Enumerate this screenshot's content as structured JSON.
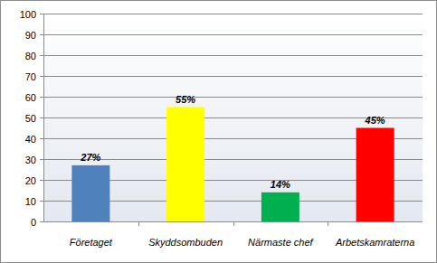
{
  "chart_data": {
    "type": "bar",
    "categories": [
      "Företaget",
      "Skyddsombuden",
      "Närmaste chef",
      "Arbetskamraterna"
    ],
    "values": [
      27,
      55,
      14,
      45
    ],
    "value_labels": [
      "27%",
      "55%",
      "14%",
      "45%"
    ],
    "colors": [
      "#4f81bd",
      "#ffff00",
      "#00b050",
      "#ff0000"
    ],
    "ylim": [
      0,
      100
    ],
    "yticks": [
      0,
      10,
      20,
      30,
      40,
      50,
      60,
      70,
      80,
      90,
      100
    ],
    "grid": true,
    "data_labels": true
  }
}
